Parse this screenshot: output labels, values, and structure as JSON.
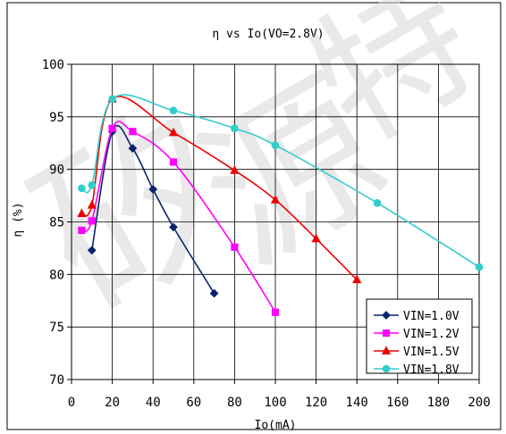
{
  "chart_data": {
    "type": "line",
    "title": "η  vs  Io(VO=2.8V)",
    "xlabel": "Io(mA)",
    "ylabel": "η (%)",
    "xlim": [
      0,
      200
    ],
    "ylim": [
      70,
      100
    ],
    "xticks": [
      0,
      20,
      40,
      60,
      80,
      100,
      120,
      140,
      160,
      180,
      200
    ],
    "yticks": [
      70,
      75,
      80,
      85,
      90,
      95,
      100
    ],
    "grid": true,
    "legend_position": "bottom-right",
    "series": [
      {
        "name": "VIN=1.0V",
        "color": "#0a246a",
        "marker": "diamond",
        "x": [
          10,
          20,
          30,
          40,
          50,
          70
        ],
        "y": [
          82.3,
          93.6,
          92.0,
          88.1,
          84.5,
          78.2
        ]
      },
      {
        "name": "VIN=1.2V",
        "color": "#ff00ff",
        "marker": "square",
        "x": [
          5,
          10,
          20,
          30,
          50,
          80,
          100
        ],
        "y": [
          84.2,
          85.1,
          93.9,
          93.6,
          90.7,
          82.6,
          76.4
        ]
      },
      {
        "name": "VIN=1.5V",
        "color": "#ee0000",
        "marker": "triangle",
        "x": [
          5,
          10,
          20,
          50,
          80,
          100,
          120,
          140
        ],
        "y": [
          85.8,
          86.6,
          96.7,
          93.5,
          89.9,
          87.1,
          83.4,
          79.5
        ]
      },
      {
        "name": "VIN=1.8V",
        "color": "#33cccc",
        "marker": "circle",
        "x": [
          5,
          10,
          20,
          50,
          80,
          100,
          150,
          200
        ],
        "y": [
          88.2,
          88.5,
          96.7,
          95.6,
          93.9,
          92.3,
          86.8,
          80.7
        ]
      }
    ]
  },
  "watermark": "矽源特"
}
